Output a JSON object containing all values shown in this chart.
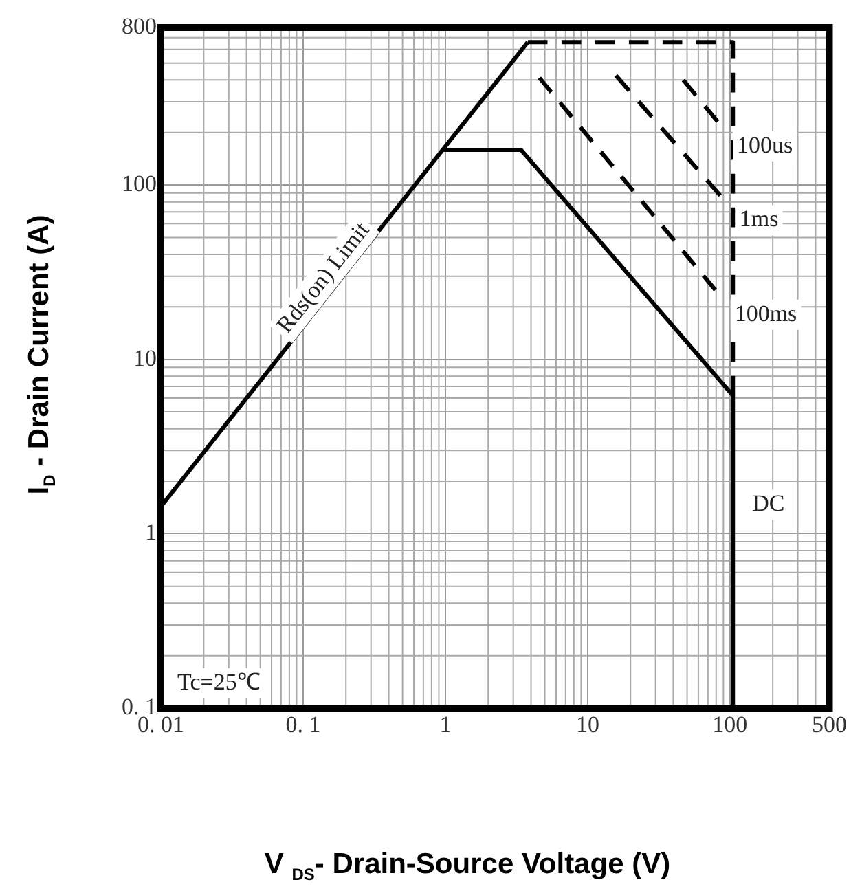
{
  "chart_data": {
    "type": "line",
    "xlabel": "V $_{DS}$- Drain-Source Voltage (V)",
    "ylabel": "I$_{D}$  - Drain Current (A)",
    "log": "xy",
    "grid": true,
    "legend": false,
    "marker": "none",
    "xlim": [
      0.01,
      500
    ],
    "xticks": [
      {
        "value": 0.01,
        "label": "0. 01"
      },
      {
        "value": 0.1,
        "label": "0. 1"
      },
      1,
      10,
      100,
      500
    ],
    "ylim": [
      0.1,
      800
    ],
    "yticks": [
      {
        "value": 0.1,
        "label": "0. 1"
      },
      1,
      10,
      100,
      800
    ],
    "series": [
      {
        "name": "Rds(on) Limit",
        "color": "#000000",
        "line_style": "solid",
        "x": [
          0.01,
          3.8
        ],
        "values": [
          1.43,
          660
        ]
      },
      {
        "name": "DC",
        "color": "#000000",
        "line_style": "solid",
        "x": [
          0.93,
          3.4,
          105,
          105
        ],
        "values": [
          159,
          159,
          6.2,
          0.1
        ]
      },
      {
        "color": "#000000",
        "line_style": "dashed",
        "x": [
          3.8,
          105,
          105
        ],
        "values": [
          660,
          660,
          6.2
        ]
      },
      {
        "name": "100us",
        "color": "#000000",
        "line_style": "dashed",
        "x": [
          47,
          82
        ],
        "values": [
          400,
          231
        ]
      },
      {
        "name": "1ms",
        "color": "#000000",
        "line_style": "dashed",
        "x": [
          15.8,
          85.5
        ],
        "values": [
          425,
          87
        ]
      },
      {
        "name": "100ms",
        "color": "#000000",
        "line_style": "dashed",
        "x": [
          4.58,
          79
        ],
        "values": [
          412,
          25
        ]
      }
    ],
    "annotations": [
      "Tc=25℃"
    ]
  }
}
